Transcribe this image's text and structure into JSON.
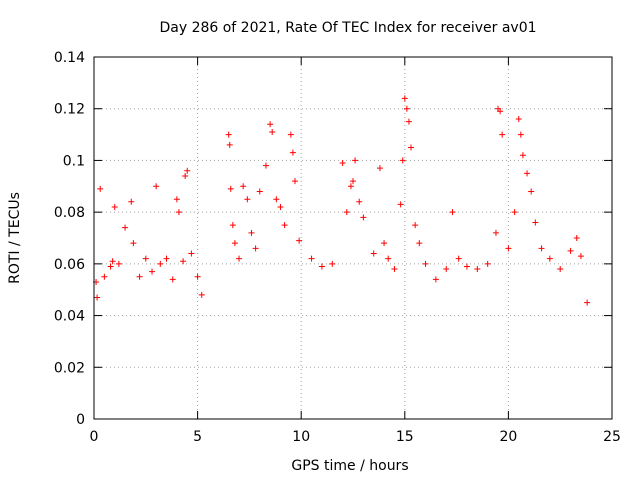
{
  "chart_data": {
    "type": "scatter",
    "title": "Day 286 of 2021, Rate Of TEC Index for receiver av01",
    "xlabel": "GPS time / hours",
    "ylabel": "ROTI / TECUs",
    "xlim": [
      0,
      25
    ],
    "ylim": [
      0,
      0.14
    ],
    "xticks": [
      0,
      5,
      10,
      15,
      20,
      25
    ],
    "yticks": [
      0,
      0.02,
      0.04,
      0.06,
      0.08,
      0.1,
      0.12,
      0.14
    ],
    "xtick_labels": [
      "0",
      "5",
      "10",
      "15",
      "20",
      "25"
    ],
    "ytick_labels": [
      "0",
      "0.02",
      "0.04",
      "0.06",
      "0.08",
      "0.1",
      "0.12",
      "0.14"
    ],
    "grid": true,
    "marker": "+",
    "color": "#ff0000",
    "series": [
      {
        "values": [
          [
            0.1,
            0.053
          ],
          [
            0.15,
            0.047
          ],
          [
            0.3,
            0.089
          ],
          [
            0.5,
            0.055
          ],
          [
            0.8,
            0.059
          ],
          [
            0.9,
            0.061
          ],
          [
            1.0,
            0.082
          ],
          [
            1.2,
            0.06
          ],
          [
            1.5,
            0.074
          ],
          [
            1.8,
            0.084
          ],
          [
            1.9,
            0.068
          ],
          [
            2.2,
            0.055
          ],
          [
            2.5,
            0.062
          ],
          [
            2.8,
            0.057
          ],
          [
            3.0,
            0.09
          ],
          [
            3.2,
            0.06
          ],
          [
            3.5,
            0.062
          ],
          [
            3.8,
            0.054
          ],
          [
            4.0,
            0.085
          ],
          [
            4.1,
            0.08
          ],
          [
            4.3,
            0.061
          ],
          [
            4.4,
            0.094
          ],
          [
            4.5,
            0.096
          ],
          [
            4.7,
            0.064
          ],
          [
            5.0,
            0.055
          ],
          [
            5.2,
            0.048
          ],
          [
            6.5,
            0.11
          ],
          [
            6.55,
            0.106
          ],
          [
            6.6,
            0.089
          ],
          [
            6.7,
            0.075
          ],
          [
            6.8,
            0.068
          ],
          [
            7.0,
            0.062
          ],
          [
            7.2,
            0.09
          ],
          [
            7.4,
            0.085
          ],
          [
            7.6,
            0.072
          ],
          [
            7.8,
            0.066
          ],
          [
            8.0,
            0.088
          ],
          [
            8.3,
            0.098
          ],
          [
            8.5,
            0.114
          ],
          [
            8.6,
            0.111
          ],
          [
            8.8,
            0.085
          ],
          [
            9.0,
            0.082
          ],
          [
            9.2,
            0.075
          ],
          [
            9.5,
            0.11
          ],
          [
            9.6,
            0.103
          ],
          [
            9.7,
            0.092
          ],
          [
            9.9,
            0.069
          ],
          [
            10.5,
            0.062
          ],
          [
            11.0,
            0.059
          ],
          [
            11.5,
            0.06
          ],
          [
            12.0,
            0.099
          ],
          [
            12.2,
            0.08
          ],
          [
            12.4,
            0.09
          ],
          [
            12.5,
            0.092
          ],
          [
            12.6,
            0.1
          ],
          [
            12.8,
            0.084
          ],
          [
            13.0,
            0.078
          ],
          [
            13.5,
            0.064
          ],
          [
            13.8,
            0.097
          ],
          [
            14.0,
            0.068
          ],
          [
            14.2,
            0.062
          ],
          [
            14.5,
            0.058
          ],
          [
            14.8,
            0.083
          ],
          [
            14.9,
            0.1
          ],
          [
            15.0,
            0.124
          ],
          [
            15.1,
            0.12
          ],
          [
            15.2,
            0.115
          ],
          [
            15.3,
            0.105
          ],
          [
            15.5,
            0.075
          ],
          [
            15.7,
            0.068
          ],
          [
            16.0,
            0.06
          ],
          [
            16.5,
            0.054
          ],
          [
            17.0,
            0.058
          ],
          [
            17.3,
            0.08
          ],
          [
            17.6,
            0.062
          ],
          [
            18.0,
            0.059
          ],
          [
            18.5,
            0.058
          ],
          [
            19.0,
            0.06
          ],
          [
            19.4,
            0.072
          ],
          [
            19.5,
            0.12
          ],
          [
            19.6,
            0.119
          ],
          [
            19.7,
            0.11
          ],
          [
            20.0,
            0.066
          ],
          [
            20.3,
            0.08
          ],
          [
            20.5,
            0.116
          ],
          [
            20.6,
            0.11
          ],
          [
            20.7,
            0.102
          ],
          [
            20.9,
            0.095
          ],
          [
            21.1,
            0.088
          ],
          [
            21.3,
            0.076
          ],
          [
            21.6,
            0.066
          ],
          [
            22.0,
            0.062
          ],
          [
            22.5,
            0.058
          ],
          [
            23.0,
            0.065
          ],
          [
            23.3,
            0.07
          ],
          [
            23.5,
            0.063
          ],
          [
            23.8,
            0.045
          ]
        ]
      }
    ]
  }
}
